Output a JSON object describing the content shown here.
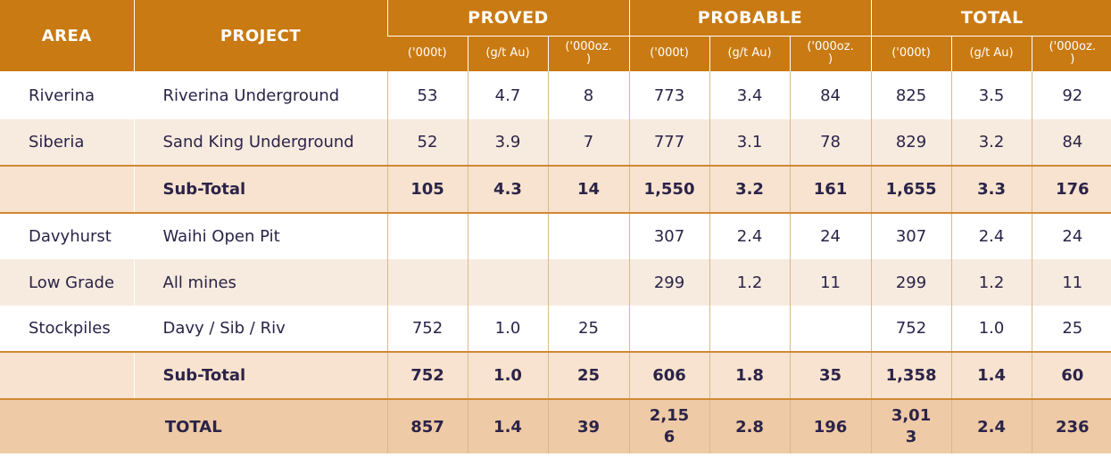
{
  "header": {
    "area": "AREA",
    "project": "PROJECT",
    "groups": [
      "PROVED",
      "PROBABLE",
      "TOTAL"
    ],
    "units": [
      "('000t)",
      "(g/t Au)",
      "('000oz.\n)",
      "('000t)",
      "(g/t Au)",
      "('000oz.\n)",
      "('000t)",
      "(g/t Au)",
      "('000oz.\n)"
    ]
  },
  "rows": [
    {
      "area": "Riverina",
      "project": "Riverina Underground",
      "vals": [
        "53",
        "4.7",
        "8",
        "773",
        "3.4",
        "84",
        "825",
        "3.5",
        "92"
      ]
    },
    {
      "area": "Siberia",
      "project": "Sand King Underground",
      "vals": [
        "52",
        "3.9",
        "7",
        "777",
        "3.1",
        "78",
        "829",
        "3.2",
        "84"
      ]
    },
    {
      "area": "",
      "project": "Sub-Total",
      "vals": [
        "105",
        "4.3",
        "14",
        "1,550",
        "3.2",
        "161",
        "1,655",
        "3.3",
        "176"
      ]
    },
    {
      "area": "Davyhurst",
      "project": "Waihi Open Pit",
      "vals": [
        "",
        "",
        "",
        "307",
        "2.4",
        "24",
        "307",
        "2.4",
        "24"
      ]
    },
    {
      "area": "Low Grade",
      "project": "All mines",
      "vals": [
        "",
        "",
        "",
        "299",
        "1.2",
        "11",
        "299",
        "1.2",
        "11"
      ]
    },
    {
      "area": "Stockpiles",
      "project": "Davy / Sib / Riv",
      "vals": [
        "752",
        "1.0",
        "25",
        "",
        "",
        "",
        "752",
        "1.0",
        "25"
      ]
    },
    {
      "area": "",
      "project": "Sub-Total",
      "vals": [
        "752",
        "1.0",
        "25",
        "606",
        "1.8",
        "35",
        "1,358",
        "1.4",
        "60"
      ]
    }
  ],
  "total": {
    "label": "TOTAL",
    "vals": [
      "857",
      "1.4",
      "39",
      "2,15\n6",
      "2.8",
      "196",
      "3,01\n3",
      "2.4",
      "236"
    ]
  }
}
